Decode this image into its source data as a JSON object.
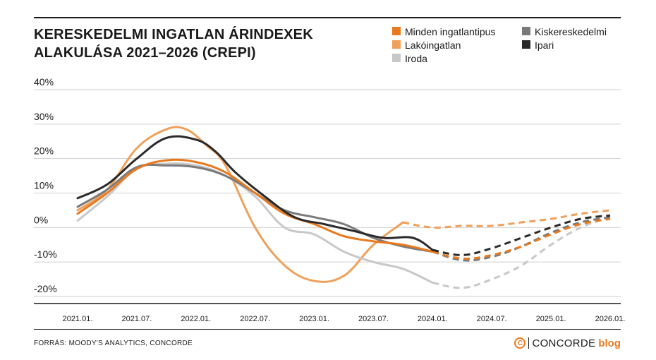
{
  "title": {
    "line1": "KERESKEDELMI INGATLAN ÁRINDEXEK",
    "line2": "ALAKULÁSA 2021–2026 (CREPI)"
  },
  "source": "FORRÁS: MOODY'S ANALYTICS, CONCORDE",
  "brand": {
    "mark": "C",
    "name": "CONCORDE",
    "suffix": "blog"
  },
  "legend_position": "top-right",
  "chart_data": {
    "type": "line",
    "title": "KERESKEDELMI INGATLAN ÁRINDEXEK ALAKULÁSA 2021–2026 (CREPI)",
    "xlabel": "",
    "ylabel": "",
    "x_tick_labels": [
      "2021.01.",
      "2021.07.",
      "2022.01.",
      "2022.07.",
      "2023.01.",
      "2023.07.",
      "2024.01.",
      "2024.07.",
      "2025.01.",
      "2026.01."
    ],
    "x_tick_positions": [
      0,
      6,
      12,
      18,
      24,
      30,
      36,
      42,
      48,
      54
    ],
    "y_tick_labels": [
      "40%",
      "30%",
      "20%",
      "10%",
      "0%",
      "-10%",
      "-20%"
    ],
    "y_tick_values": [
      40,
      30,
      20,
      10,
      0,
      -10,
      -20
    ],
    "ylim": [
      -22,
      40
    ],
    "xlim": [
      -2,
      56
    ],
    "grid": true,
    "forecast_start_index": 36,
    "series": [
      {
        "name": "Minden ingatlantipus",
        "color": "#e8791e",
        "actual": [
          [
            0,
            4
          ],
          [
            3,
            10
          ],
          [
            6,
            17
          ],
          [
            9,
            19.5
          ],
          [
            12,
            19
          ],
          [
            15,
            16
          ],
          [
            18,
            10
          ],
          [
            21,
            4
          ],
          [
            24,
            1
          ],
          [
            27,
            -2.5
          ],
          [
            30,
            -4
          ],
          [
            33,
            -5
          ],
          [
            36,
            -7
          ]
        ],
        "forecast": [
          [
            36,
            -7
          ],
          [
            39,
            -9
          ],
          [
            42,
            -8
          ],
          [
            45,
            -5.5
          ],
          [
            48,
            -2
          ],
          [
            51,
            1
          ],
          [
            54,
            2.5
          ]
        ]
      },
      {
        "name": "Lakóingatlan",
        "color": "#efa05a",
        "actual": [
          [
            0,
            5
          ],
          [
            3,
            11
          ],
          [
            6,
            23
          ],
          [
            9,
            28.5
          ],
          [
            11,
            28.5
          ],
          [
            13,
            24
          ],
          [
            15,
            18
          ],
          [
            18,
            0
          ],
          [
            21,
            -11
          ],
          [
            24,
            -15.5
          ],
          [
            27,
            -14
          ],
          [
            30,
            -5
          ],
          [
            33,
            1.5
          ]
        ],
        "forecast": [
          [
            33,
            1.5
          ],
          [
            36,
            0
          ],
          [
            39,
            0.5
          ],
          [
            42,
            0.5
          ],
          [
            45,
            1.5
          ],
          [
            48,
            2.5
          ],
          [
            51,
            4
          ],
          [
            54,
            5
          ]
        ]
      },
      {
        "name": "Iroda",
        "color": "#c8c8c8",
        "actual": [
          [
            0,
            2
          ],
          [
            3,
            9
          ],
          [
            6,
            17
          ],
          [
            9,
            18.5
          ],
          [
            12,
            18
          ],
          [
            15,
            15
          ],
          [
            18,
            9
          ],
          [
            21,
            0
          ],
          [
            24,
            -2
          ],
          [
            27,
            -7
          ],
          [
            30,
            -10
          ],
          [
            33,
            -12
          ],
          [
            36,
            -16
          ]
        ],
        "forecast": [
          [
            36,
            -16
          ],
          [
            39,
            -17.5
          ],
          [
            42,
            -15
          ],
          [
            45,
            -11
          ],
          [
            48,
            -5
          ],
          [
            51,
            0
          ],
          [
            54,
            3
          ]
        ]
      },
      {
        "name": "Kiskereskedelmi",
        "color": "#7a7a7a",
        "actual": [
          [
            0,
            6
          ],
          [
            3,
            11
          ],
          [
            6,
            17.5
          ],
          [
            9,
            18
          ],
          [
            12,
            17.5
          ],
          [
            15,
            15
          ],
          [
            18,
            10
          ],
          [
            21,
            5
          ],
          [
            24,
            3
          ],
          [
            27,
            1
          ],
          [
            30,
            -3
          ],
          [
            33,
            -5.5
          ],
          [
            36,
            -7
          ]
        ],
        "forecast": [
          [
            36,
            -7
          ],
          [
            39,
            -9.5
          ],
          [
            42,
            -8.5
          ],
          [
            45,
            -5.5
          ],
          [
            48,
            -1.5
          ],
          [
            51,
            1.5
          ],
          [
            54,
            3
          ]
        ]
      },
      {
        "name": "Ipari",
        "color": "#2a2a2a",
        "actual": [
          [
            0,
            8.5
          ],
          [
            3,
            12.5
          ],
          [
            6,
            20
          ],
          [
            9,
            26
          ],
          [
            12,
            25.5
          ],
          [
            14,
            22
          ],
          [
            16,
            16
          ],
          [
            19,
            9
          ],
          [
            22,
            3
          ],
          [
            25,
            1
          ],
          [
            28,
            -1
          ],
          [
            31,
            -3
          ],
          [
            34,
            -3
          ],
          [
            36,
            -6.5
          ]
        ],
        "forecast": [
          [
            36,
            -6.5
          ],
          [
            39,
            -8
          ],
          [
            42,
            -6
          ],
          [
            45,
            -3
          ],
          [
            48,
            0
          ],
          [
            51,
            2.5
          ],
          [
            54,
            3.5
          ]
        ]
      }
    ]
  }
}
